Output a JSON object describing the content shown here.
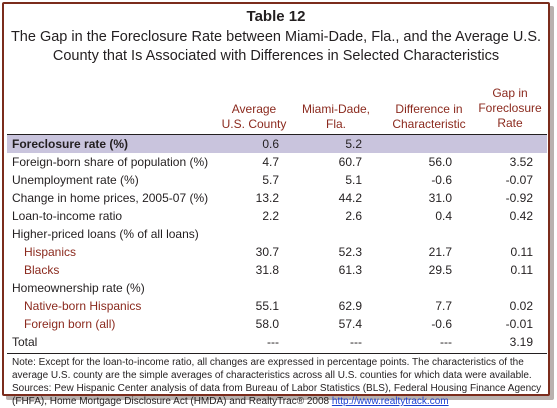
{
  "table": {
    "number": "Table 12",
    "title_line1": "The Gap in the Foreclosure Rate between Miami-Dade, Fla., and the Average U.S.",
    "title_line2": "County that Is Associated with Differences in Selected Characteristics"
  },
  "columns": {
    "avg_l1": "Average",
    "avg_l2": "U.S. County",
    "miami_l1": "Miami-Dade,",
    "miami_l2": "Fla.",
    "diff_l1": "Difference in",
    "diff_l2": "Characteristic",
    "gap_l1": "Gap in",
    "gap_l2": "Foreclosure",
    "gap_l3": "Rate"
  },
  "rows": [
    {
      "label": "Foreclosure rate (%)",
      "avg": "0.6",
      "miami": "5.2",
      "diff": "",
      "gap": ""
    },
    {
      "label": "Foreign-born share of population (%)",
      "avg": "4.7",
      "miami": "60.7",
      "diff": "56.0",
      "gap": "3.52"
    },
    {
      "label": "Unemployment rate (%)",
      "avg": "5.7",
      "miami": "5.1",
      "diff": "-0.6",
      "gap": "-0.07"
    },
    {
      "label": "Change in home prices, 2005-07 (%)",
      "avg": "13.2",
      "miami": "44.2",
      "diff": "31.0",
      "gap": "-0.92"
    },
    {
      "label": "Loan-to-income ratio",
      "avg": "2.2",
      "miami": "2.6",
      "diff": "0.4",
      "gap": "0.42"
    },
    {
      "label": "Higher-priced loans (% of all loans)",
      "avg": "",
      "miami": "",
      "diff": "",
      "gap": ""
    },
    {
      "label": "Hispanics",
      "avg": "30.7",
      "miami": "52.3",
      "diff": "21.7",
      "gap": "0.11"
    },
    {
      "label": "Blacks",
      "avg": "31.8",
      "miami": "61.3",
      "diff": "29.5",
      "gap": "0.11"
    },
    {
      "label": "Homeownership rate (%)",
      "avg": "",
      "miami": "",
      "diff": "",
      "gap": ""
    },
    {
      "label": "Native-born Hispanics",
      "avg": "55.1",
      "miami": "62.9",
      "diff": "7.7",
      "gap": "0.02"
    },
    {
      "label": "Foreign born (all)",
      "avg": "58.0",
      "miami": "57.4",
      "diff": "-0.6",
      "gap": "-0.01"
    },
    {
      "label": "Total",
      "avg": "---",
      "miami": "---",
      "diff": "---",
      "gap": "3.19"
    }
  ],
  "notes": {
    "note": "Note: Except for the loan-to-income ratio, all changes are expressed in percentage points. The characteristics of the average U.S. county are the simple averages of characteristics across all U.S. counties for which data were available.",
    "sources": "Sources: Pew Hispanic Center analysis of data from Bureau of Labor Statistics (BLS), Federal Housing Finance Agency (FHFA), Home Mortgage Disclosure Act (HMDA) and RealtyTrac® 2008",
    "link": "http://www.realtytrack.com"
  },
  "colors": {
    "border": "#7b2c1c",
    "header_text": "#8b2a1e",
    "highlight_row": "#c9c4dd",
    "link": "#1a3fd1"
  }
}
